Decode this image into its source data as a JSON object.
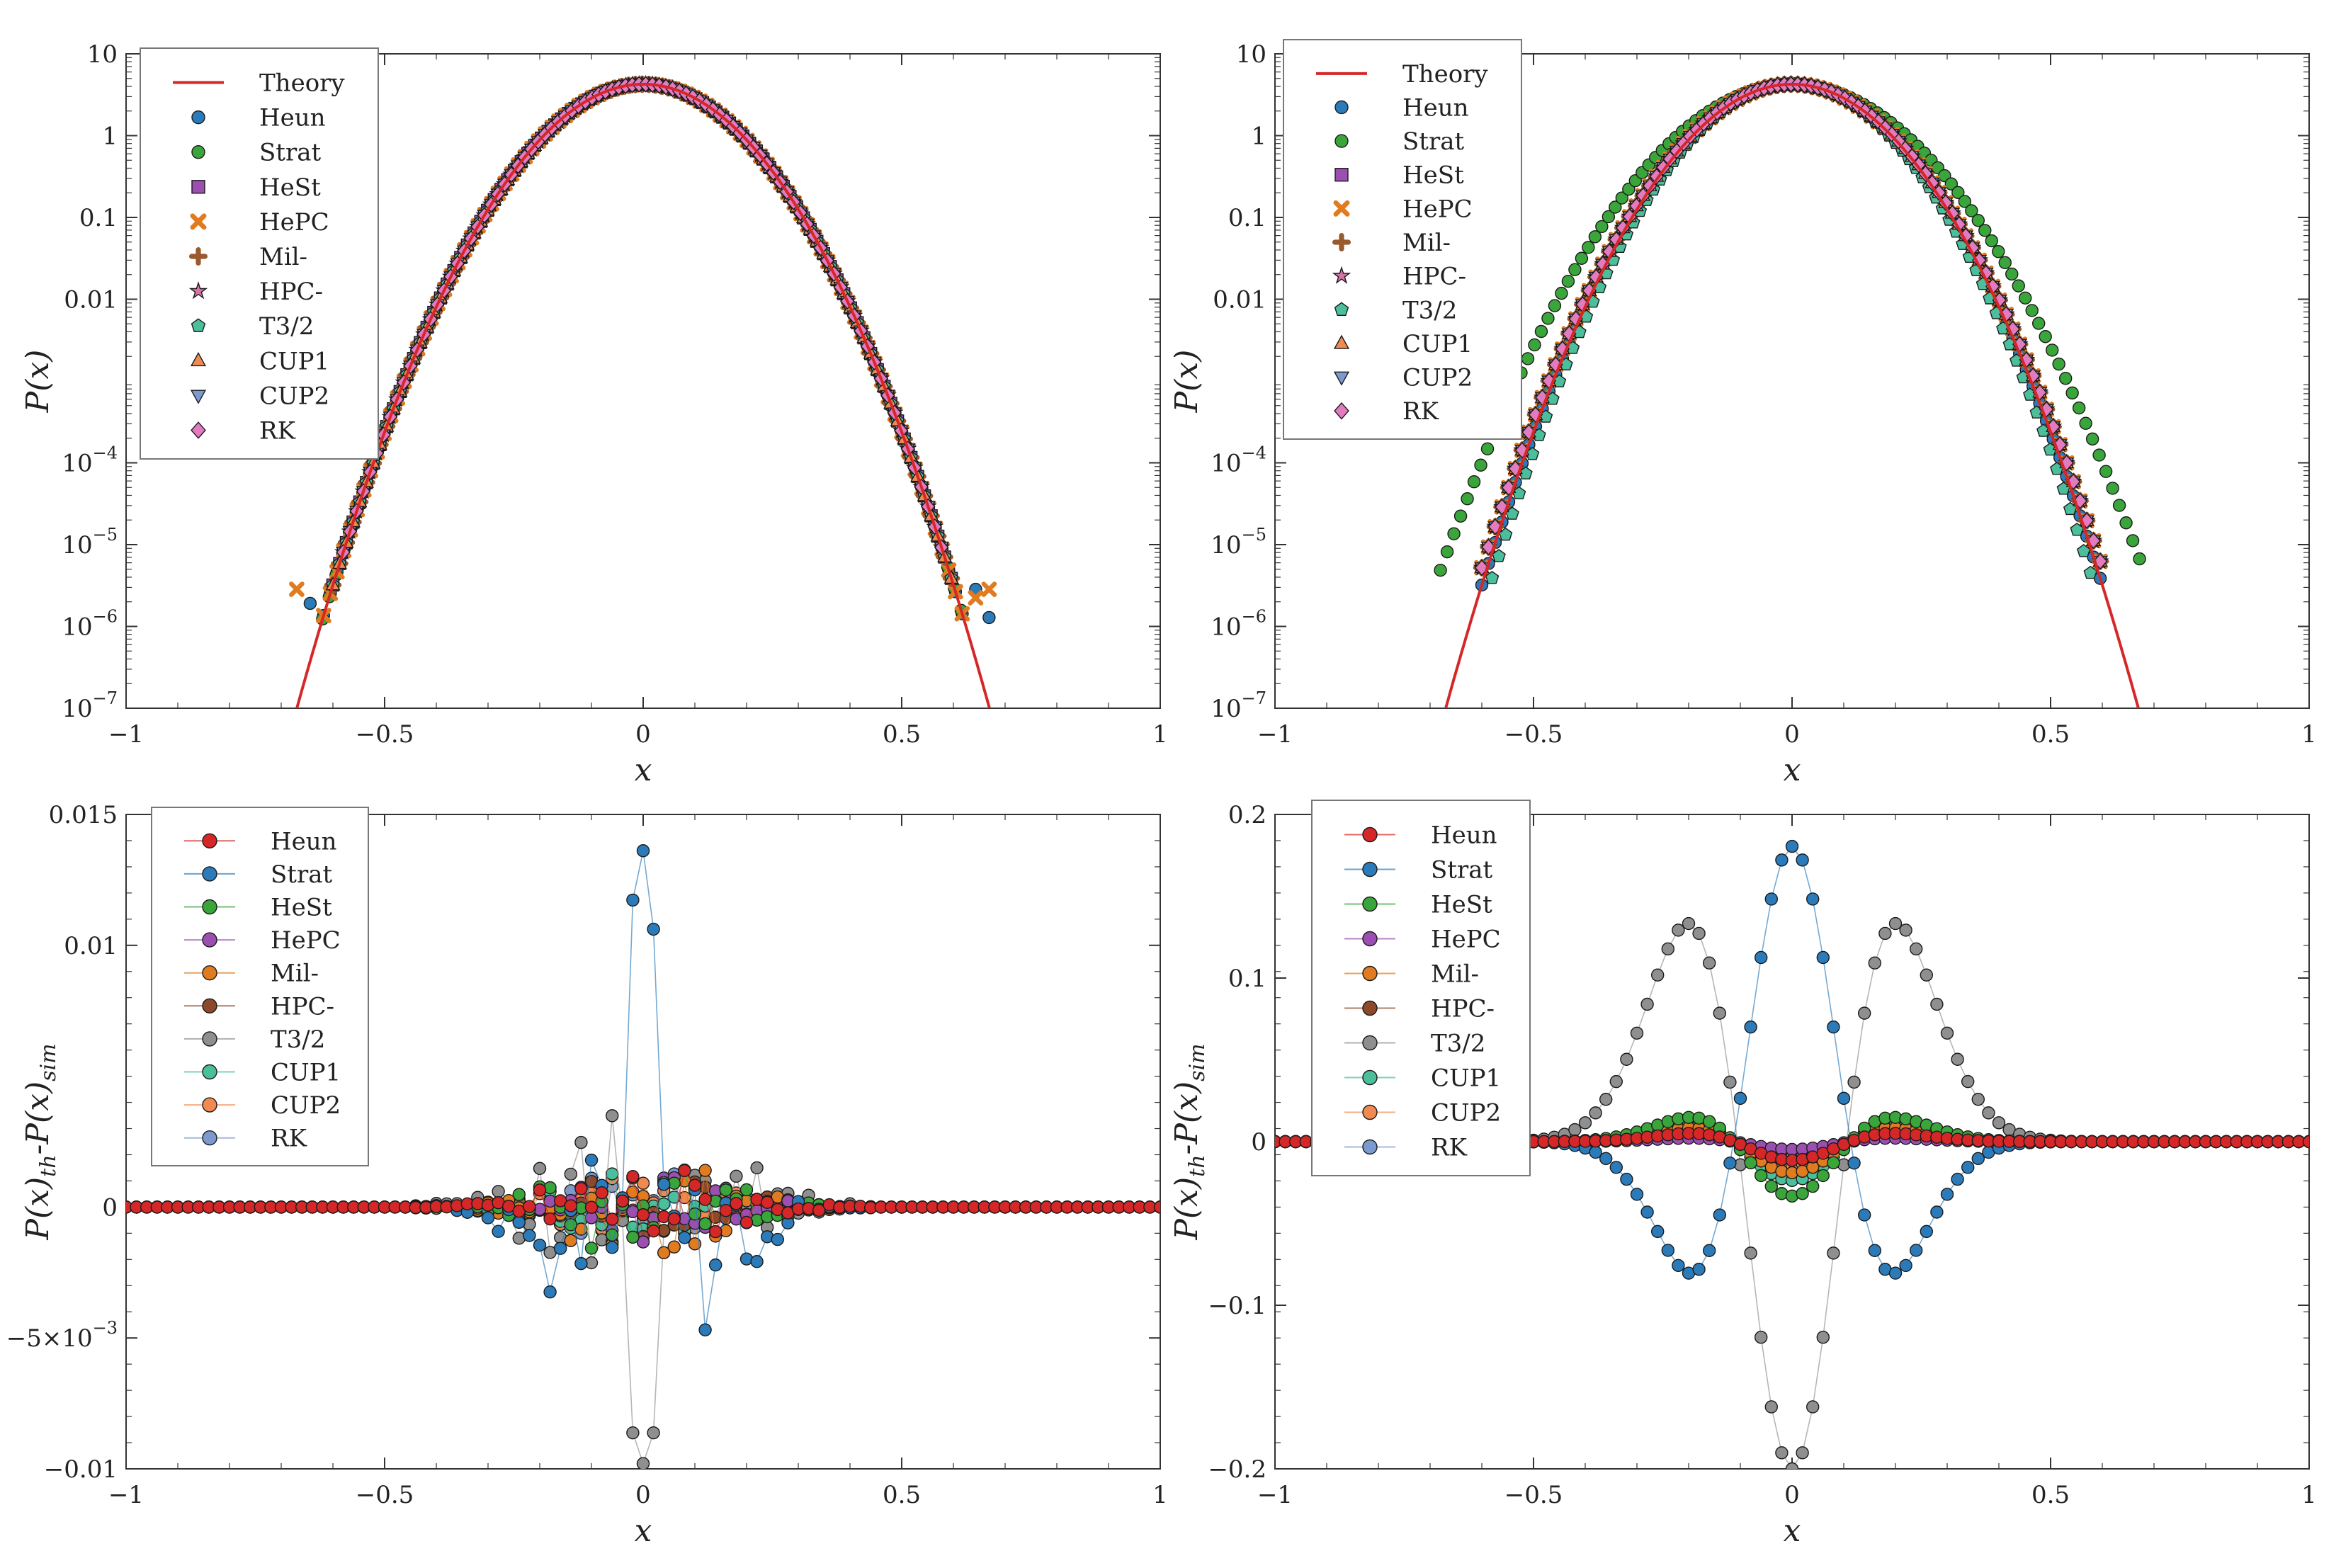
{
  "chart_data": [
    {
      "id": "top-left",
      "type": "scatter",
      "yscale": "log",
      "xlim": [
        -1,
        1
      ],
      "ylim": [
        1e-07,
        10
      ],
      "xlabel": "x",
      "ylabel": "P(x)",
      "xticks": [
        -1,
        -0.5,
        0,
        0.5,
        1
      ],
      "xtick_labels": [
        "−1",
        "−0.5",
        "0",
        "0.5",
        "1"
      ],
      "yticks": [
        1e-07,
        1e-06,
        1e-05,
        0.0001,
        0.01,
        0.1,
        1,
        10
      ],
      "ytick_labels": [
        [
          "10",
          "−7"
        ],
        [
          "10",
          "−6"
        ],
        [
          "10",
          "−5"
        ],
        [
          "10",
          "−4"
        ],
        [
          "0.01",
          ""
        ],
        [
          "0.1",
          ""
        ],
        [
          "1",
          ""
        ],
        [
          "10",
          ""
        ]
      ],
      "legend_position": "top-left",
      "theory": {
        "name": "Theory",
        "peak": 4.25,
        "sigma": 0.113
      },
      "series": [
        {
          "name": "Heun",
          "marker": "circle",
          "color": "#2b7bba",
          "sigma": 0.113,
          "tail": 0.67
        },
        {
          "name": "Strat",
          "marker": "circle",
          "color": "#3aa53a",
          "sigma": 0.113,
          "tail": 0.62
        },
        {
          "name": "HeSt",
          "marker": "square",
          "color": "#9b4fb0",
          "sigma": 0.113,
          "tail": 0.6
        },
        {
          "name": "HePC",
          "marker": "x",
          "color": "#e07b20",
          "sigma": 0.113,
          "tail": 0.67
        },
        {
          "name": "Mil-",
          "marker": "plus",
          "color": "#9a5a2e",
          "sigma": 0.113,
          "tail": 0.6
        },
        {
          "name": "HPC-",
          "marker": "star",
          "color": "#d873a8",
          "sigma": 0.113,
          "tail": 0.58
        },
        {
          "name": "T3/2",
          "marker": "pentagon",
          "color": "#4bbf9c",
          "sigma": 0.113,
          "tail": 0.6
        },
        {
          "name": "CUP1",
          "marker": "triangle-up",
          "color": "#f08a50",
          "sigma": 0.113,
          "tail": 0.6
        },
        {
          "name": "CUP2",
          "marker": "triangle-down",
          "color": "#7b9bd0",
          "sigma": 0.113,
          "tail": 0.58
        },
        {
          "name": "RK",
          "marker": "diamond",
          "color": "#e27bc0",
          "sigma": 0.113,
          "tail": 0.58
        }
      ]
    },
    {
      "id": "top-right",
      "type": "scatter",
      "yscale": "log",
      "xlim": [
        -1,
        1
      ],
      "ylim": [
        1e-07,
        10
      ],
      "xlabel": "x",
      "ylabel": "P(x)",
      "xticks": [
        -1,
        -0.5,
        0,
        0.5,
        1
      ],
      "xtick_labels": [
        "−1",
        "−0.5",
        "0",
        "0.5",
        "1"
      ],
      "yticks": [
        1e-07,
        1e-06,
        1e-05,
        0.0001,
        0.01,
        0.1,
        1,
        10
      ],
      "ytick_labels": [
        [
          "10",
          "−7"
        ],
        [
          "10",
          "−6"
        ],
        [
          "10",
          "−5"
        ],
        [
          "10",
          "−4"
        ],
        [
          "0.01",
          ""
        ],
        [
          "0.1",
          ""
        ],
        [
          "1",
          ""
        ],
        [
          "10",
          ""
        ]
      ],
      "legend_position": "top-left",
      "theory": {
        "name": "Theory",
        "peak": 4.25,
        "sigma": 0.113
      },
      "series": [
        {
          "name": "Heun",
          "marker": "circle",
          "color": "#2b7bba",
          "sigma": 0.113,
          "tail": 0.6
        },
        {
          "name": "Strat",
          "marker": "circle",
          "color": "#3aa53a",
          "sigma": 0.13,
          "tail": 0.68
        },
        {
          "name": "HeSt",
          "marker": "square",
          "color": "#9b4fb0",
          "sigma": 0.115,
          "tail": 0.6
        },
        {
          "name": "HePC",
          "marker": "x",
          "color": "#e07b20",
          "sigma": 0.115,
          "tail": 0.6
        },
        {
          "name": "Mil-",
          "marker": "plus",
          "color": "#9a5a2e",
          "sigma": 0.115,
          "tail": 0.6
        },
        {
          "name": "HPC-",
          "marker": "star",
          "color": "#d873a8",
          "sigma": 0.115,
          "tail": 0.6
        },
        {
          "name": "T3/2",
          "marker": "pentagon",
          "color": "#4bbf9c",
          "sigma": 0.11,
          "tail": 0.58
        },
        {
          "name": "CUP1",
          "marker": "triangle-up",
          "color": "#f08a50",
          "sigma": 0.115,
          "tail": 0.6
        },
        {
          "name": "CUP2",
          "marker": "triangle-down",
          "color": "#7b9bd0",
          "sigma": 0.115,
          "tail": 0.6
        },
        {
          "name": "RK",
          "marker": "diamond",
          "color": "#e27bc0",
          "sigma": 0.115,
          "tail": 0.6
        }
      ]
    },
    {
      "id": "bottom-left",
      "type": "line",
      "xlim": [
        -1,
        1
      ],
      "ylim": [
        -0.01,
        0.015
      ],
      "xlabel": "x",
      "ylabel": "P(x)th-P(x)sim",
      "ylabel_parts": [
        "P(x)",
        "th",
        "-P(x)",
        "sim"
      ],
      "xticks": [
        -1,
        -0.5,
        0,
        0.5,
        1
      ],
      "xtick_labels": [
        "−1",
        "−0.5",
        "0",
        "0.5",
        "1"
      ],
      "yticks": [
        -0.01,
        -0.005,
        0,
        0.01,
        0.015
      ],
      "ytick_labels": [
        [
          "−0.01",
          ""
        ],
        [
          "−5×10",
          "−3"
        ],
        [
          "0",
          ""
        ],
        [
          "0.01",
          ""
        ],
        [
          "0.015",
          ""
        ]
      ],
      "legend_position": "top-left",
      "series": [
        {
          "name": "Heun",
          "color": "#d62728",
          "kind": "noise",
          "amp": 0.0018,
          "width": 0.2
        },
        {
          "name": "Strat",
          "color": "#2b7bba",
          "kind": "noise",
          "amp": 0.0042,
          "width": 0.19,
          "peak": 0.0135
        },
        {
          "name": "HeSt",
          "color": "#3aa53a",
          "kind": "noise",
          "amp": 0.0022,
          "width": 0.2
        },
        {
          "name": "HePC",
          "color": "#9b4fb0",
          "kind": "noise",
          "amp": 0.0015,
          "width": 0.2
        },
        {
          "name": "Mil-",
          "color": "#e07b20",
          "kind": "noise",
          "amp": 0.002,
          "width": 0.2
        },
        {
          "name": "HPC-",
          "color": "#8c4a2a",
          "kind": "noise",
          "amp": 0.0016,
          "width": 0.2
        },
        {
          "name": "T3/2",
          "color": "#8f8f8f",
          "kind": "noise",
          "amp": 0.0038,
          "width": 0.22,
          "trough": -0.0098
        },
        {
          "name": "CUP1",
          "color": "#4bbf9c",
          "kind": "noise",
          "amp": 0.0016,
          "width": 0.2
        },
        {
          "name": "CUP2",
          "color": "#f08a50",
          "kind": "noise",
          "amp": 0.0016,
          "width": 0.2
        },
        {
          "name": "RK",
          "color": "#7b9bd0",
          "kind": "noise",
          "amp": 0.0014,
          "width": 0.2
        }
      ]
    },
    {
      "id": "bottom-right",
      "type": "line",
      "xlim": [
        -1,
        1
      ],
      "ylim": [
        -0.2,
        0.2
      ],
      "xlabel": "x",
      "ylabel": "P(x)th-P(x)sim",
      "ylabel_parts": [
        "P(x)",
        "th",
        "-P(x)",
        "sim"
      ],
      "xticks": [
        -1,
        -0.5,
        0,
        0.5,
        1
      ],
      "xtick_labels": [
        "−1",
        "−0.5",
        "0",
        "0.5",
        "1"
      ],
      "yticks": [
        -0.2,
        -0.1,
        0,
        0.1,
        0.2
      ],
      "ytick_labels": [
        [
          "−0.2",
          ""
        ],
        [
          "−0.1",
          ""
        ],
        [
          "0",
          ""
        ],
        [
          "0.1",
          ""
        ],
        [
          "0.2",
          ""
        ]
      ],
      "legend_position": "top-left",
      "series": [
        {
          "name": "Heun",
          "color": "#d62728",
          "kind": "hermite",
          "a": -0.012
        },
        {
          "name": "Strat",
          "color": "#2b7bba",
          "kind": "hermite",
          "a": 0.19
        },
        {
          "name": "HeSt",
          "color": "#3aa53a",
          "kind": "hermite",
          "a": -0.035
        },
        {
          "name": "HePC",
          "color": "#9b4fb0",
          "kind": "hermite",
          "a": -0.005
        },
        {
          "name": "Mil-",
          "color": "#e07b20",
          "kind": "hermite",
          "a": -0.02
        },
        {
          "name": "HPC-",
          "color": "#8c4a2a",
          "kind": "hermite",
          "a": -0.012
        },
        {
          "name": "T3/2",
          "color": "#8f8f8f",
          "kind": "hermite",
          "a": -0.2
        },
        {
          "name": "CUP1",
          "color": "#4bbf9c",
          "kind": "hermite",
          "a": -0.025
        },
        {
          "name": "CUP2",
          "color": "#f08a50",
          "kind": "hermite",
          "a": -0.015
        },
        {
          "name": "RK",
          "color": "#7b9bd0",
          "kind": "hermite",
          "a": -0.01
        }
      ]
    }
  ]
}
